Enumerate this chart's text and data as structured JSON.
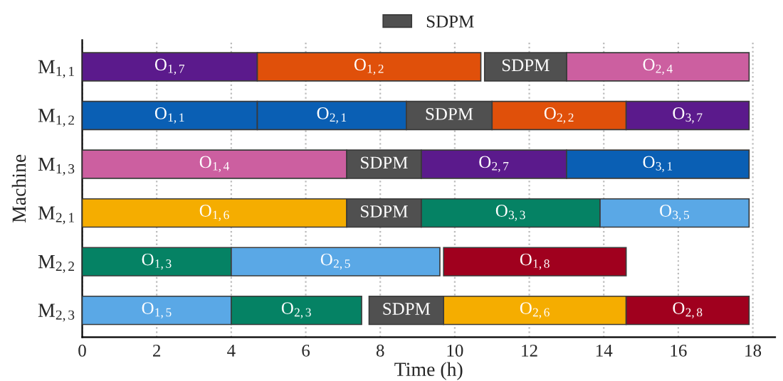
{
  "chart_data": {
    "type": "bar",
    "orientation": "horizontal",
    "xlabel": "Time (h)",
    "ylabel": "Machine",
    "categories": [
      "M$_{1,1}$",
      "M$_{1,2}$",
      "M$_{1,3}$",
      "M$_{2,1}$",
      "M$_{2,2}$",
      "M$_{2,3}$"
    ],
    "series": [
      {
        "colors": [
          "#5b1a8c",
          "#0a5fb4",
          "#cc5fa0",
          "#f5ad00",
          "#058264",
          "#5aa8e6"
        ],
        "base": [
          0,
          0,
          0,
          0,
          0,
          0
        ],
        "values": [
          4.7,
          4.7,
          7.1,
          7.1,
          4.0,
          4.0
        ]
      },
      {
        "colors": [
          "#e0500a",
          "#0a5fb4",
          "#5b1a8c",
          "#058264",
          "#5aa8e6",
          "#058264"
        ],
        "base": [
          4.7,
          4.7,
          9.1,
          9.1,
          4.0,
          4.0
        ],
        "values": [
          6.0,
          4.0,
          3.9,
          4.8,
          5.6,
          3.5
        ]
      },
      {
        "colors": [
          "#cc5fa0",
          "#e0500a",
          "#0a5fb4",
          "#5aa8e6",
          "#a0001e",
          "#f5ad00"
        ],
        "base": [
          13.0,
          11.0,
          13.0,
          13.9,
          9.7,
          9.7
        ],
        "values": [
          4.9,
          3.6,
          4.9,
          4.0,
          4.9,
          4.9
        ]
      },
      {
        "colors": [
          null,
          "#5b1a8c",
          null,
          null,
          null,
          "#a0001e"
        ],
        "base": [
          null,
          14.6,
          null,
          null,
          null,
          14.6
        ],
        "values": [
          null,
          3.3,
          null,
          null,
          null,
          3.3
        ]
      },
      {
        "name": "SDPM",
        "color": "#505050",
        "base": [
          10.8,
          8.7,
          7.1,
          7.1,
          null,
          7.7
        ],
        "values": [
          2.2,
          2.3,
          2.0,
          2.0,
          null,
          2.0
        ]
      }
    ],
    "annotations": [
      {
        "text": "O$_{1,7}$",
        "x": 2.35,
        "y": "M$_{1,1}$"
      },
      {
        "text": "O$_{1,2}$",
        "x": 7.7,
        "y": "M$_{1,1}$"
      },
      {
        "text": "SDPM",
        "x": 11.9,
        "y": "M$_{1,1}$"
      },
      {
        "text": "O$_{2,4}$",
        "x": 15.45,
        "y": "M$_{1,1}$"
      },
      {
        "text": "O$_{1,1}$",
        "x": 2.35,
        "y": "M$_{1,2}$"
      },
      {
        "text": "O$_{2,1}$",
        "x": 6.7,
        "y": "M$_{1,2}$"
      },
      {
        "text": "SDPM",
        "x": 9.85,
        "y": "M$_{1,2}$"
      },
      {
        "text": "O$_{2,2}$",
        "x": 12.8,
        "y": "M$_{1,2}$"
      },
      {
        "text": "O$_{3,7}$",
        "x": 16.25,
        "y": "M$_{1,2}$"
      },
      {
        "text": "O$_{1,4}$",
        "x": 3.55,
        "y": "M$_{1,3}$"
      },
      {
        "text": "SDPM",
        "x": 8.1,
        "y": "M$_{1,3}$"
      },
      {
        "text": "O$_{2,7}$",
        "x": 11.05,
        "y": "M$_{1,3}$"
      },
      {
        "text": "O$_{3,1}$",
        "x": 15.45,
        "y": "M$_{1,3}$"
      },
      {
        "text": "O$_{1,6}$",
        "x": 3.55,
        "y": "M$_{2,1}$"
      },
      {
        "text": "SDPM",
        "x": 8.1,
        "y": "M$_{2,1}$"
      },
      {
        "text": "O$_{3,3}$",
        "x": 11.5,
        "y": "M$_{2,1}$"
      },
      {
        "text": "O$_{3,5}$",
        "x": 15.9,
        "y": "M$_{2,1}$"
      },
      {
        "text": "O$_{1,3}$",
        "x": 2.0,
        "y": "M$_{2,2}$"
      },
      {
        "text": "O$_{2,5}$",
        "x": 6.8,
        "y": "M$_{2,2}$"
      },
      {
        "text": "O$_{1,8}$",
        "x": 12.15,
        "y": "M$_{2,2}$"
      },
      {
        "text": "O$_{1,5}$",
        "x": 2.0,
        "y": "M$_{2,3}$"
      },
      {
        "text": "O$_{2,3}$",
        "x": 5.75,
        "y": "M$_{2,3}$"
      },
      {
        "text": "SDPM",
        "x": 8.7,
        "y": "M$_{2,3}$"
      },
      {
        "text": "O$_{2,6}$",
        "x": 12.15,
        "y": "M$_{2,3}$"
      },
      {
        "text": "O$_{2,8}$",
        "x": 16.25,
        "y": "M$_{2,3}$"
      }
    ],
    "xlim": [
      0,
      18.6
    ],
    "xticks": [
      0,
      2,
      4,
      6,
      8,
      10,
      12,
      14,
      16,
      18
    ],
    "grid": "x",
    "legend": "top"
  }
}
